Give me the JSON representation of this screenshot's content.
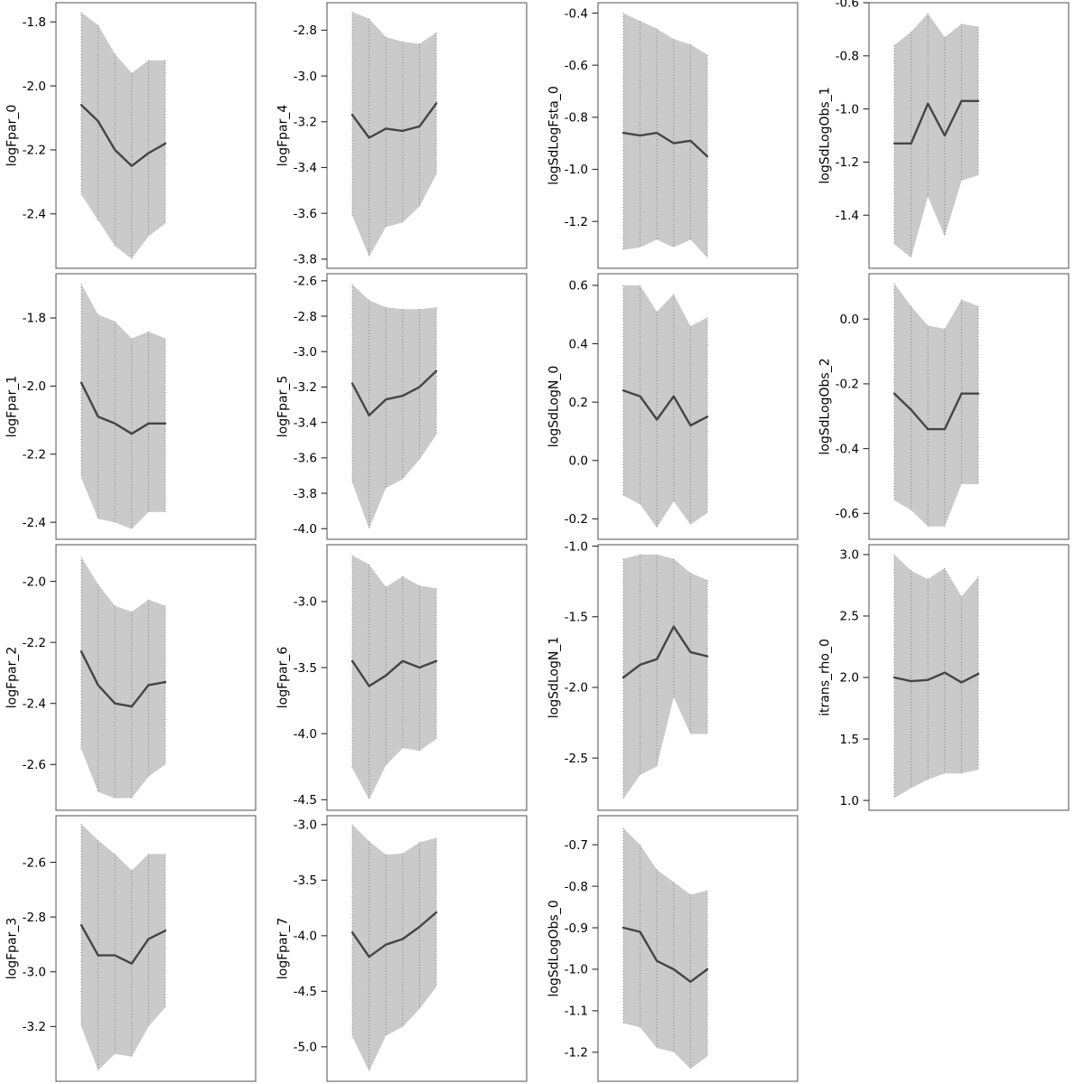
{
  "colors": {
    "background": "#ffffff",
    "confidence_band": "#cacaca",
    "ci_dotted_segment": "#808080",
    "estimate_line": "#454545",
    "panel_border": "#5f5f5f",
    "tick_mark": "#2b2b2b",
    "text": "#000000"
  },
  "chart_data": [
    {
      "type": "line",
      "row": 0,
      "col": 0,
      "title": "",
      "xlabel": "",
      "ylabel": "logFpar_0",
      "x": [
        1,
        2,
        3,
        4,
        5,
        6
      ],
      "ylim": [
        -2.57,
        -1.74
      ],
      "yticks": [
        -2.4,
        -2.2,
        -2.0,
        -1.8
      ],
      "grid": "dotted vertical ci segments",
      "legend": "none",
      "series": [
        {
          "name": "estimate",
          "values": [
            -2.06,
            -2.11,
            -2.2,
            -2.25,
            -2.21,
            -2.18
          ]
        },
        {
          "name": "upper_ci",
          "values": [
            -1.77,
            -1.81,
            -1.9,
            -1.96,
            -1.92,
            -1.92
          ]
        },
        {
          "name": "lower_ci",
          "values": [
            -2.34,
            -2.42,
            -2.5,
            -2.54,
            -2.47,
            -2.43
          ]
        }
      ]
    },
    {
      "type": "line",
      "row": 0,
      "col": 1,
      "title": "",
      "xlabel": "",
      "ylabel": "logFpar_4",
      "x": [
        1,
        2,
        3,
        4,
        5,
        6
      ],
      "ylim": [
        -3.84,
        -2.68
      ],
      "yticks": [
        -3.8,
        -3.6,
        -3.4,
        -3.2,
        -3.0,
        -2.8
      ],
      "grid": "dotted vertical ci segments",
      "legend": "none",
      "series": [
        {
          "name": "estimate",
          "values": [
            -3.17,
            -3.27,
            -3.23,
            -3.24,
            -3.22,
            -3.12
          ]
        },
        {
          "name": "upper_ci",
          "values": [
            -2.72,
            -2.75,
            -2.83,
            -2.85,
            -2.86,
            -2.81
          ]
        },
        {
          "name": "lower_ci",
          "values": [
            -3.61,
            -3.79,
            -3.66,
            -3.64,
            -3.57,
            -3.43
          ]
        }
      ]
    },
    {
      "type": "line",
      "row": 0,
      "col": 2,
      "title": "",
      "xlabel": "",
      "ylabel": "logSdLogFsta_0",
      "x": [
        1,
        2,
        3,
        4,
        5,
        6
      ],
      "ylim": [
        -1.38,
        -0.36
      ],
      "yticks": [
        -1.2,
        -1.0,
        -0.8,
        -0.6,
        -0.4
      ],
      "grid": "dotted vertical ci segments",
      "legend": "none",
      "series": [
        {
          "name": "estimate",
          "values": [
            -0.86,
            -0.87,
            -0.86,
            -0.9,
            -0.89,
            -0.95
          ]
        },
        {
          "name": "upper_ci",
          "values": [
            -0.4,
            -0.43,
            -0.46,
            -0.5,
            -0.52,
            -0.56
          ]
        },
        {
          "name": "lower_ci",
          "values": [
            -1.31,
            -1.3,
            -1.27,
            -1.3,
            -1.27,
            -1.34
          ]
        }
      ]
    },
    {
      "type": "line",
      "row": 0,
      "col": 3,
      "title": "",
      "xlabel": "",
      "ylabel": "logSdLogObs_1",
      "x": [
        1,
        2,
        3,
        4,
        5,
        6
      ],
      "ylim": [
        -1.6,
        -0.6
      ],
      "yticks": [
        -1.4,
        -1.2,
        -1.0,
        -0.8,
        -0.6
      ],
      "grid": "dotted vertical ci segments",
      "legend": "none",
      "series": [
        {
          "name": "estimate",
          "values": [
            -1.13,
            -1.13,
            -0.98,
            -1.1,
            -0.97,
            -0.97
          ]
        },
        {
          "name": "upper_ci",
          "values": [
            -0.76,
            -0.71,
            -0.64,
            -0.73,
            -0.68,
            -0.69
          ]
        },
        {
          "name": "lower_ci",
          "values": [
            -1.51,
            -1.56,
            -1.33,
            -1.48,
            -1.27,
            -1.25
          ]
        }
      ]
    },
    {
      "type": "line",
      "row": 1,
      "col": 0,
      "title": "",
      "xlabel": "",
      "ylabel": "logFpar_1",
      "x": [
        1,
        2,
        3,
        4,
        5,
        6
      ],
      "ylim": [
        -2.45,
        -1.67
      ],
      "yticks": [
        -2.4,
        -2.2,
        -2.0,
        -1.8
      ],
      "grid": "dotted vertical ci segments",
      "legend": "none",
      "series": [
        {
          "name": "estimate",
          "values": [
            -1.99,
            -2.09,
            -2.11,
            -2.14,
            -2.11,
            -2.11
          ]
        },
        {
          "name": "upper_ci",
          "values": [
            -1.7,
            -1.79,
            -1.81,
            -1.86,
            -1.84,
            -1.86
          ]
        },
        {
          "name": "lower_ci",
          "values": [
            -2.27,
            -2.39,
            -2.4,
            -2.42,
            -2.37,
            -2.37
          ]
        }
      ]
    },
    {
      "type": "line",
      "row": 1,
      "col": 1,
      "title": "",
      "xlabel": "",
      "ylabel": "logFpar_5",
      "x": [
        1,
        2,
        3,
        4,
        5,
        6
      ],
      "ylim": [
        -4.06,
        -2.56
      ],
      "yticks": [
        -4.0,
        -3.8,
        -3.6,
        -3.4,
        -3.2,
        -3.0,
        -2.8,
        -2.6
      ],
      "grid": "dotted vertical ci segments",
      "legend": "none",
      "series": [
        {
          "name": "estimate",
          "values": [
            -3.18,
            -3.36,
            -3.27,
            -3.25,
            -3.2,
            -3.11
          ]
        },
        {
          "name": "upper_ci",
          "values": [
            -2.62,
            -2.71,
            -2.75,
            -2.76,
            -2.76,
            -2.75
          ]
        },
        {
          "name": "lower_ci",
          "values": [
            -3.74,
            -4.0,
            -3.77,
            -3.72,
            -3.61,
            -3.47
          ]
        }
      ]
    },
    {
      "type": "line",
      "row": 1,
      "col": 2,
      "title": "",
      "xlabel": "",
      "ylabel": "logSdLogN_0",
      "x": [
        1,
        2,
        3,
        4,
        5,
        6
      ],
      "ylim": [
        -0.27,
        0.64
      ],
      "yticks": [
        -0.2,
        0.0,
        0.2,
        0.4,
        0.6
      ],
      "grid": "dotted vertical ci segments",
      "legend": "none",
      "series": [
        {
          "name": "estimate",
          "values": [
            0.24,
            0.22,
            0.14,
            0.22,
            0.12,
            0.15
          ]
        },
        {
          "name": "upper_ci",
          "values": [
            0.6,
            0.6,
            0.51,
            0.57,
            0.46,
            0.49
          ]
        },
        {
          "name": "lower_ci",
          "values": [
            -0.12,
            -0.15,
            -0.23,
            -0.14,
            -0.22,
            -0.18
          ]
        }
      ]
    },
    {
      "type": "line",
      "row": 1,
      "col": 3,
      "title": "",
      "xlabel": "",
      "ylabel": "logSdLogObs_2",
      "x": [
        1,
        2,
        3,
        4,
        5,
        6
      ],
      "ylim": [
        -0.68,
        0.14
      ],
      "yticks": [
        -0.6,
        -0.4,
        -0.2,
        0.0
      ],
      "grid": "dotted vertical ci segments",
      "legend": "none",
      "series": [
        {
          "name": "estimate",
          "values": [
            -0.23,
            -0.28,
            -0.34,
            -0.34,
            -0.23,
            -0.23
          ]
        },
        {
          "name": "upper_ci",
          "values": [
            0.11,
            0.04,
            -0.02,
            -0.03,
            0.06,
            0.04
          ]
        },
        {
          "name": "lower_ci",
          "values": [
            -0.56,
            -0.59,
            -0.64,
            -0.64,
            -0.51,
            -0.51
          ]
        }
      ]
    },
    {
      "type": "line",
      "row": 2,
      "col": 0,
      "title": "",
      "xlabel": "",
      "ylabel": "logFpar_2",
      "x": [
        1,
        2,
        3,
        4,
        5,
        6
      ],
      "ylim": [
        -2.75,
        -1.88
      ],
      "yticks": [
        -2.6,
        -2.4,
        -2.2,
        -2.0
      ],
      "grid": "dotted vertical ci segments",
      "legend": "none",
      "series": [
        {
          "name": "estimate",
          "values": [
            -2.23,
            -2.34,
            -2.4,
            -2.41,
            -2.34,
            -2.33
          ]
        },
        {
          "name": "upper_ci",
          "values": [
            -1.92,
            -2.01,
            -2.08,
            -2.1,
            -2.06,
            -2.08
          ]
        },
        {
          "name": "lower_ci",
          "values": [
            -2.55,
            -2.69,
            -2.71,
            -2.71,
            -2.64,
            -2.6
          ]
        }
      ]
    },
    {
      "type": "line",
      "row": 2,
      "col": 1,
      "title": "",
      "xlabel": "",
      "ylabel": "logFpar_6",
      "x": [
        1,
        2,
        3,
        4,
        5,
        6
      ],
      "ylim": [
        -4.58,
        -2.57
      ],
      "yticks": [
        -4.5,
        -4.0,
        -3.5,
        -3.0
      ],
      "grid": "dotted vertical ci segments",
      "legend": "none",
      "series": [
        {
          "name": "estimate",
          "values": [
            -3.45,
            -3.64,
            -3.56,
            -3.45,
            -3.5,
            -3.45
          ]
        },
        {
          "name": "upper_ci",
          "values": [
            -2.65,
            -2.72,
            -2.89,
            -2.81,
            -2.88,
            -2.9
          ]
        },
        {
          "name": "lower_ci",
          "values": [
            -4.26,
            -4.5,
            -4.24,
            -4.11,
            -4.13,
            -4.04
          ]
        }
      ]
    },
    {
      "type": "line",
      "row": 2,
      "col": 2,
      "title": "",
      "xlabel": "",
      "ylabel": "logSdLogN_1",
      "x": [
        1,
        2,
        3,
        4,
        5,
        6
      ],
      "ylim": [
        -2.87,
        -0.99
      ],
      "yticks": [
        -2.5,
        -2.0,
        -1.5,
        -1.0
      ],
      "grid": "dotted vertical ci segments",
      "legend": "none",
      "series": [
        {
          "name": "estimate",
          "values": [
            -1.93,
            -1.84,
            -1.8,
            -1.57,
            -1.75,
            -1.78
          ]
        },
        {
          "name": "upper_ci",
          "values": [
            -1.09,
            -1.06,
            -1.06,
            -1.09,
            -1.19,
            -1.24
          ]
        },
        {
          "name": "lower_ci",
          "values": [
            -2.79,
            -2.62,
            -2.56,
            -2.07,
            -2.33,
            -2.33
          ]
        }
      ]
    },
    {
      "type": "line",
      "row": 2,
      "col": 3,
      "title": "",
      "xlabel": "",
      "ylabel": "itrans_rho_0",
      "x": [
        1,
        2,
        3,
        4,
        5,
        6
      ],
      "ylim": [
        0.92,
        3.08
      ],
      "yticks": [
        1.0,
        1.5,
        2.0,
        2.5,
        3.0
      ],
      "grid": "dotted vertical ci segments",
      "legend": "none",
      "series": [
        {
          "name": "estimate",
          "values": [
            2.0,
            1.97,
            1.98,
            2.04,
            1.96,
            2.03
          ]
        },
        {
          "name": "upper_ci",
          "values": [
            3.0,
            2.87,
            2.8,
            2.89,
            2.66,
            2.82
          ]
        },
        {
          "name": "lower_ci",
          "values": [
            1.02,
            1.1,
            1.17,
            1.22,
            1.22,
            1.25
          ]
        }
      ]
    },
    {
      "type": "line",
      "row": 3,
      "col": 0,
      "title": "",
      "xlabel": "",
      "ylabel": "logFpar_3",
      "x": [
        1,
        2,
        3,
        4,
        5,
        6
      ],
      "ylim": [
        -3.4,
        -2.43
      ],
      "yticks": [
        -3.2,
        -3.0,
        -2.8,
        -2.6
      ],
      "grid": "dotted vertical ci segments",
      "legend": "none",
      "series": [
        {
          "name": "estimate",
          "values": [
            -2.83,
            -2.94,
            -2.94,
            -2.97,
            -2.88,
            -2.85
          ]
        },
        {
          "name": "upper_ci",
          "values": [
            -2.46,
            -2.52,
            -2.57,
            -2.63,
            -2.57,
            -2.57
          ]
        },
        {
          "name": "lower_ci",
          "values": [
            -3.2,
            -3.36,
            -3.3,
            -3.31,
            -3.2,
            -3.13
          ]
        }
      ]
    },
    {
      "type": "line",
      "row": 3,
      "col": 1,
      "title": "",
      "xlabel": "",
      "ylabel": "logFpar_7",
      "x": [
        1,
        2,
        3,
        4,
        5,
        6
      ],
      "ylim": [
        -5.31,
        -2.92
      ],
      "yticks": [
        -5.0,
        -4.5,
        -4.0,
        -3.5,
        -3.0
      ],
      "grid": "dotted vertical ci segments",
      "legend": "none",
      "series": [
        {
          "name": "estimate",
          "values": [
            -3.97,
            -4.19,
            -4.08,
            -4.03,
            -3.92,
            -3.79
          ]
        },
        {
          "name": "upper_ci",
          "values": [
            -3.0,
            -3.15,
            -3.27,
            -3.26,
            -3.16,
            -3.12
          ]
        },
        {
          "name": "lower_ci",
          "values": [
            -4.91,
            -5.22,
            -4.9,
            -4.82,
            -4.66,
            -4.46
          ]
        }
      ]
    },
    {
      "type": "line",
      "row": 3,
      "col": 2,
      "title": "",
      "xlabel": "",
      "ylabel": "logSdLogObs_0",
      "x": [
        1,
        2,
        3,
        4,
        5,
        6
      ],
      "ylim": [
        -1.27,
        -0.63
      ],
      "yticks": [
        -1.2,
        -1.1,
        -1.0,
        -0.9,
        -0.8,
        -0.7
      ],
      "grid": "dotted vertical ci segments",
      "legend": "none",
      "series": [
        {
          "name": "estimate",
          "values": [
            -0.9,
            -0.91,
            -0.98,
            -1.0,
            -1.03,
            -1.0
          ]
        },
        {
          "name": "upper_ci",
          "values": [
            -0.66,
            -0.7,
            -0.76,
            -0.79,
            -0.82,
            -0.81
          ]
        },
        {
          "name": "lower_ci",
          "values": [
            -1.13,
            -1.14,
            -1.19,
            -1.2,
            -1.24,
            -1.21
          ]
        }
      ]
    }
  ]
}
